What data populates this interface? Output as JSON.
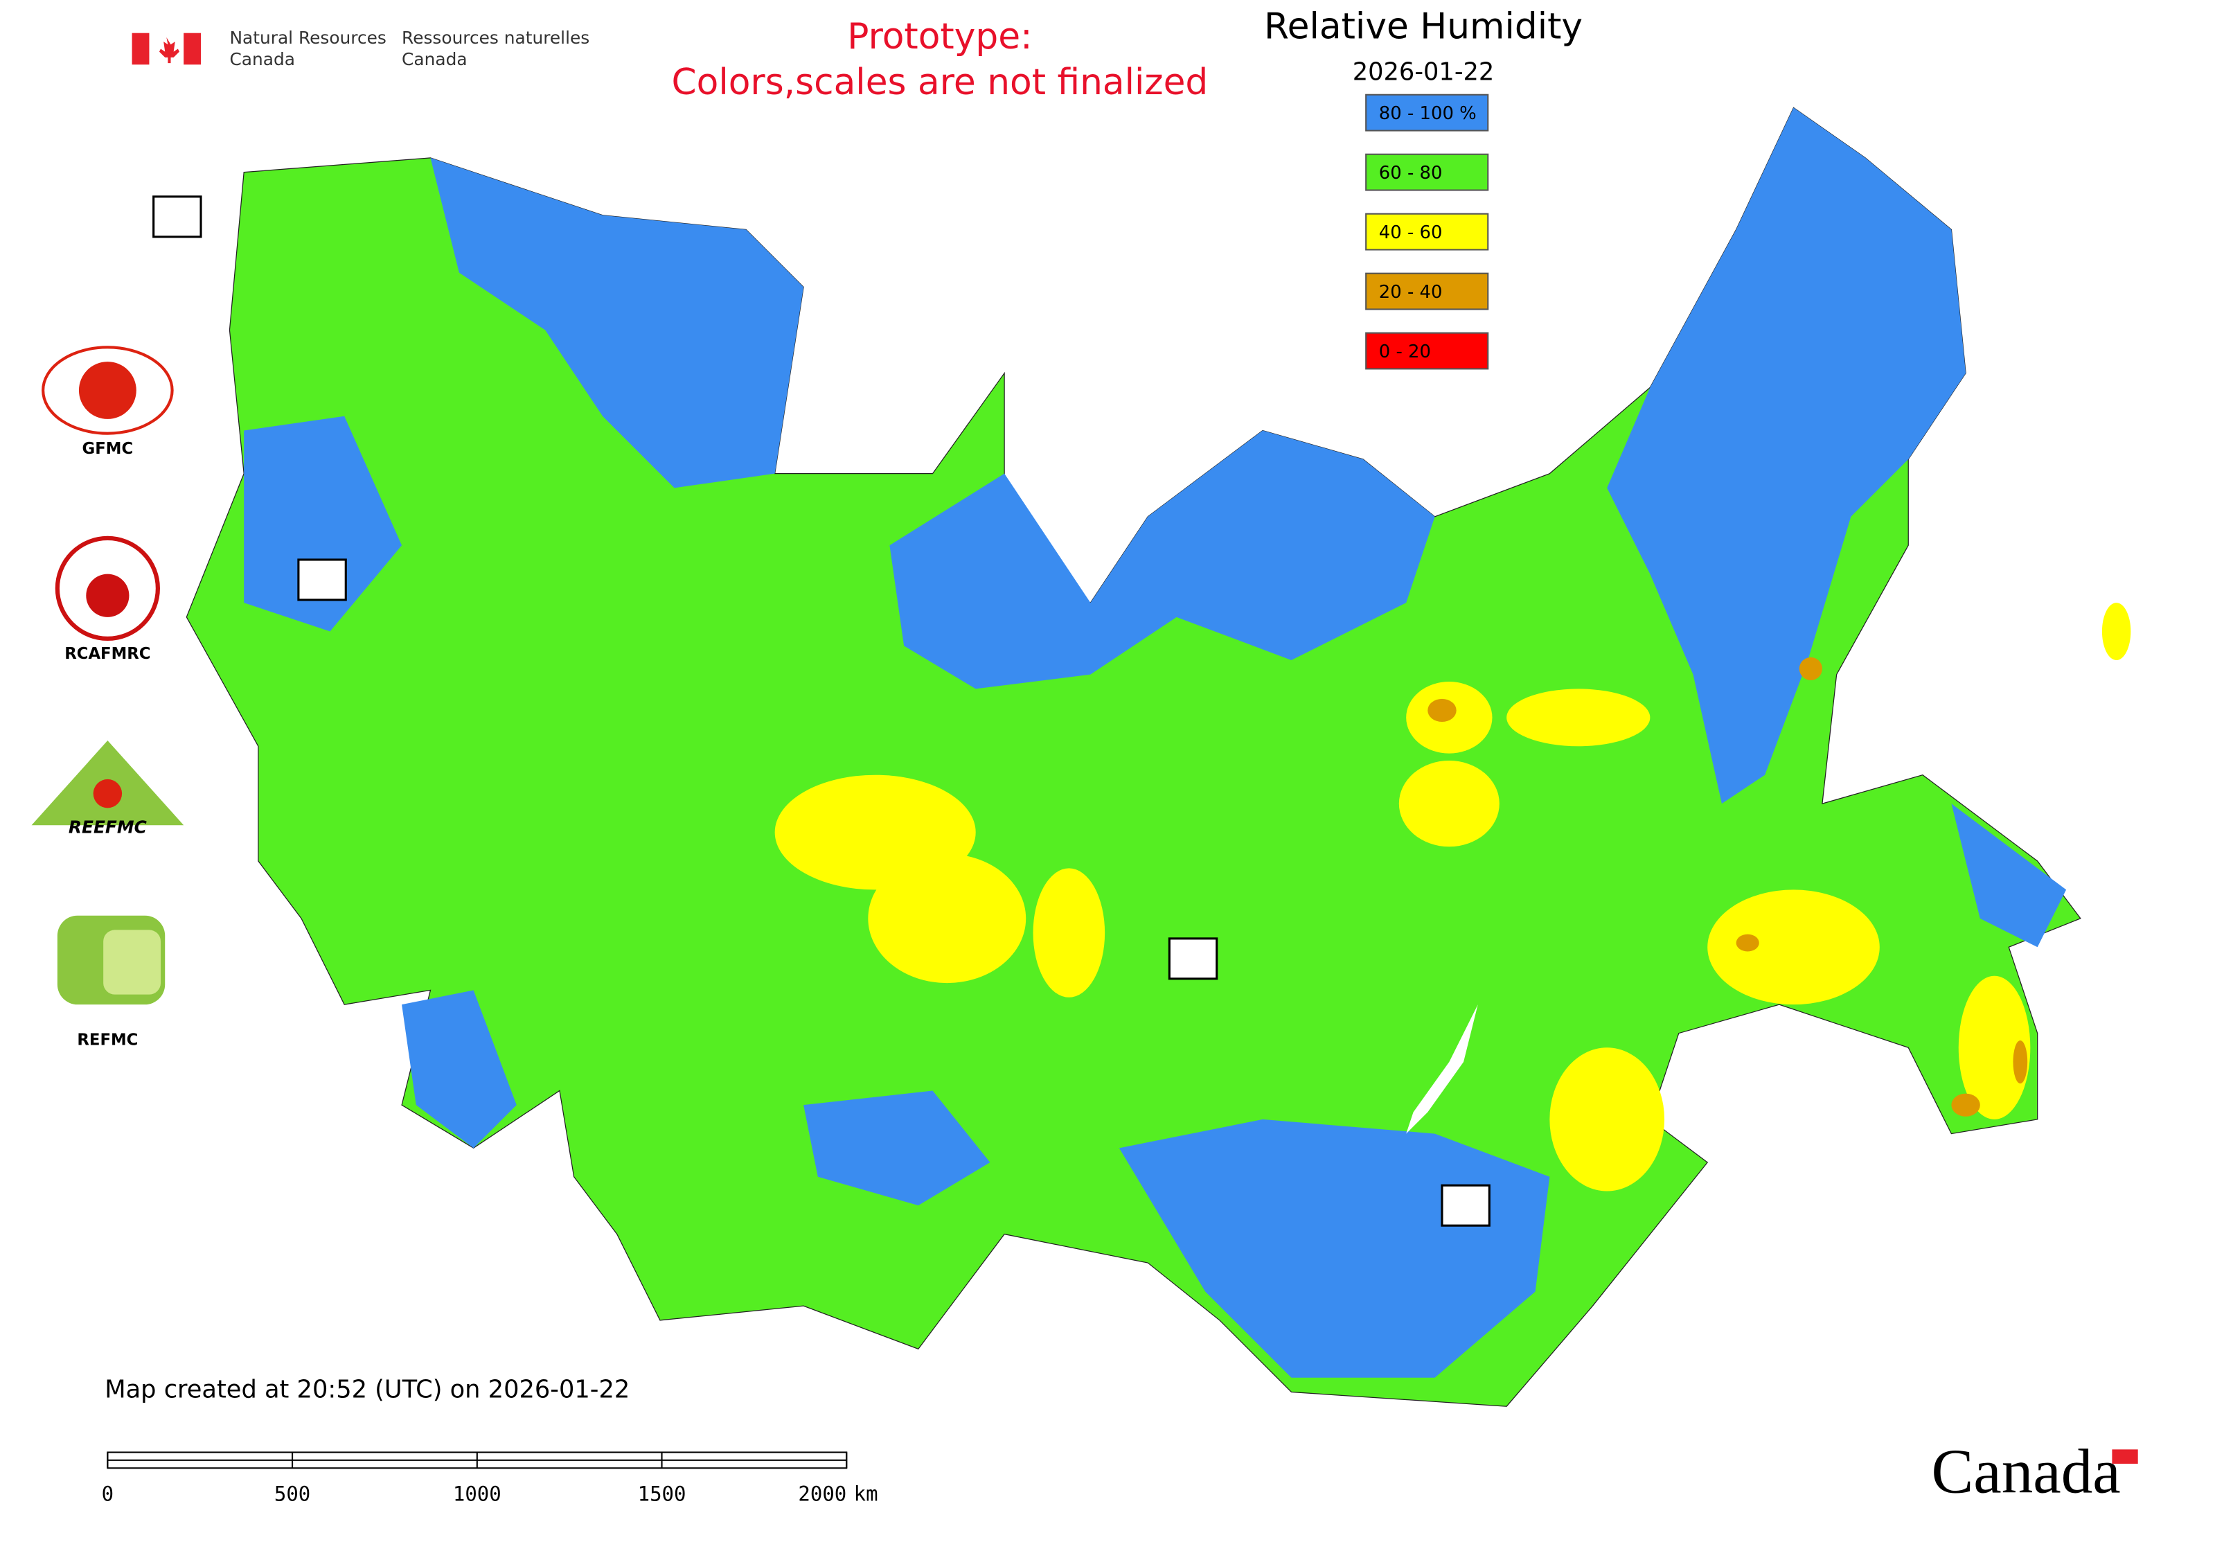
{
  "header": {
    "agency_en_line1": "Natural Resources",
    "agency_en_line2": "Canada",
    "agency_fr_line1": "Ressources naturelles",
    "agency_fr_line2": "Canada"
  },
  "notice": [
    "Prototype:",
    "Colors,scales are not finalized"
  ],
  "title": "Relative Humidity",
  "date": "2026-01-22",
  "legend": [
    {
      "label": "80 - 100 %",
      "color": "#3a8cf0"
    },
    {
      "label": "60 - 80",
      "color": "#55ee22"
    },
    {
      "label": "40 - 60",
      "color": "#ffff00"
    },
    {
      "label": "20 - 40",
      "color": "#dd9900"
    },
    {
      "label": "0 - 20",
      "color": "#ff0000"
    }
  ],
  "logos": [
    "GFMC",
    "RCAFMRC",
    "REEFMC",
    "REFMC"
  ],
  "created": "Map created at 20:52 (UTC) on 2026-01-22",
  "scale_bar": {
    "ticks": [
      0,
      500,
      1000,
      1500,
      2000
    ],
    "unit": "km"
  },
  "wordmark": "Canada"
}
